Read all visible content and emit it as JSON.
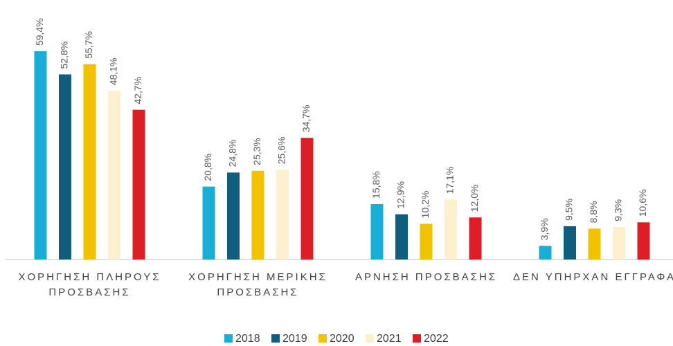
{
  "chart_data": {
    "type": "bar",
    "categories": [
      "ΧΟΡΗΓΗΣΗ ΠΛΗΡΟΥΣ ΠΡΟΣΒΑΣΗΣ",
      "ΧΟΡΗΓΗΣΗ ΜΕΡΙΚΗΣ ΠΡΟΣΒΑΣΗΣ",
      "ΑΡΝΗΣΗ ΠΡΟΣΒΑΣΗΣ",
      "ΔΕΝ ΥΠΗΡΧΑΝ ΕΓΓΡΑΦΑ"
    ],
    "series": [
      {
        "name": "2018",
        "color": "#1aaed6",
        "values": [
          59.4,
          20.8,
          15.8,
          3.9
        ],
        "value_labels": [
          "59,4%",
          "20,8%",
          "15,8%",
          "3,9%"
        ]
      },
      {
        "name": "2019",
        "color": "#0f5e7e",
        "values": [
          52.8,
          24.8,
          12.9,
          9.5
        ],
        "value_labels": [
          "52,8%",
          "24,8%",
          "12,9%",
          "9,5%"
        ]
      },
      {
        "name": "2020",
        "color": "#f2c200",
        "values": [
          55.7,
          25.3,
          10.2,
          8.8
        ],
        "value_labels": [
          "55,7%",
          "25,3%",
          "10,2%",
          "8,8%"
        ]
      },
      {
        "name": "2021",
        "color": "#fdf0cf",
        "values": [
          48.1,
          25.6,
          17.1,
          9.3
        ],
        "value_labels": [
          "48,1%",
          "25,6%",
          "17,1%",
          "9,3%"
        ]
      },
      {
        "name": "2022",
        "color": "#dc1f26",
        "values": [
          42.7,
          34.7,
          12.0,
          10.6
        ],
        "value_labels": [
          "42,7%",
          "34,7%",
          "12,0%",
          "10,6%"
        ]
      }
    ],
    "ylim": [
      0,
      60
    ],
    "legend": "bottom"
  }
}
